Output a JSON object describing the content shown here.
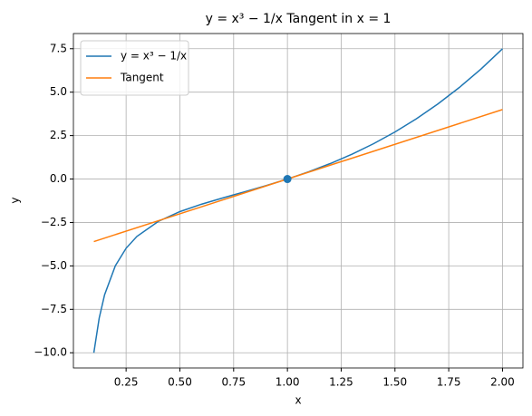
{
  "chart_data": {
    "type": "line",
    "title": "y = x³ − 1/x Tangent in x = 1",
    "xlabel": "x",
    "ylabel": "y",
    "xlim": [
      0.005,
      2.095
    ],
    "ylim": [
      -10.875,
      8.375
    ],
    "xticks": [
      0.25,
      {
        "value": 0.5,
        "label": "0.50"
      },
      0.75,
      {
        "value": 1,
        "label": "1.00"
      },
      1.25,
      {
        "value": 1.5,
        "label": "1.50"
      },
      1.75,
      {
        "value": 2,
        "label": "2.00"
      }
    ],
    "yticks": [
      {
        "value": -10,
        "label": "−10.0"
      },
      {
        "value": -7.5,
        "label": "−7.5"
      },
      {
        "value": -5,
        "label": "−5.0"
      },
      {
        "value": -2.5,
        "label": "−2.5"
      },
      {
        "value": 0,
        "label": "0.0"
      },
      2.5,
      {
        "value": 5,
        "label": "5.0"
      },
      7.5
    ],
    "grid": true,
    "legend": "upper left",
    "series": [
      {
        "name": "y = x³ − 1/x",
        "color": "#1f77b4",
        "x": [
          0.1,
          0.125,
          0.15,
          0.2,
          0.25,
          0.3,
          0.4,
          0.5,
          0.6,
          0.7,
          0.8,
          0.9,
          1.0,
          1.1,
          1.2,
          1.3,
          1.4,
          1.5,
          1.6,
          1.7,
          1.8,
          1.9,
          2.0
        ],
        "values": [
          -9.999,
          -7.998,
          -6.663,
          -4.992,
          -3.984,
          -3.306,
          -2.436,
          -1.875,
          -1.451,
          -1.086,
          -0.738,
          -0.382,
          0,
          0.422,
          0.895,
          1.428,
          2.03,
          2.708,
          3.471,
          4.325,
          5.276,
          6.333,
          7.5
        ]
      },
      {
        "name": "Tangent",
        "color": "#ff7f0e",
        "x": [
          0.1,
          2.0
        ],
        "values": [
          -3.6,
          4.0
        ]
      }
    ],
    "points": [
      {
        "x": 1,
        "y": 0,
        "color": "#1f77b4"
      }
    ]
  }
}
